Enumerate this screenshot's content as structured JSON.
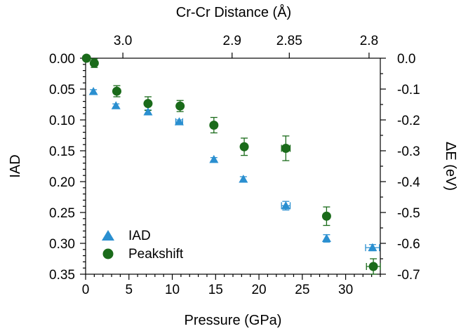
{
  "chart_data": {
    "type": "scatter",
    "xlabel": "Pressure (GPa)",
    "x_top_label": "Cr-Cr Distance (Å)",
    "ylabel": "IAD",
    "y2label": "ΔE (eV)",
    "xlim": [
      0,
      34
    ],
    "ylim": [
      0,
      0.35
    ],
    "y_inverted": true,
    "y2lim": [
      0,
      -0.7
    ],
    "x_ticks": [
      "0",
      "5",
      "10",
      "15",
      "20",
      "25",
      "30"
    ],
    "y_ticks": [
      "0.00",
      "0.05",
      "0.10",
      "0.15",
      "0.20",
      "0.25",
      "0.30",
      "0.35"
    ],
    "y2_ticks": [
      "0.0",
      "-0.1",
      "-0.2",
      "-0.3",
      "-0.4",
      "-0.5",
      "-0.6",
      "-0.7"
    ],
    "x_top_ticks": [
      {
        "label": "3.0",
        "pressure": 4.3
      },
      {
        "label": "2.9",
        "pressure": 16.9
      },
      {
        "label": "2.85",
        "pressure": 23.5
      },
      {
        "label": "2.8",
        "pressure": 32.7
      }
    ],
    "legend_position": "bottom-left",
    "series": [
      {
        "name": "IAD",
        "marker": "triangle",
        "color": "#2a8fd0",
        "axis": "left",
        "points": [
          {
            "x": 0.9,
            "y": 0.054,
            "yerr": 0.003,
            "xerr": 0
          },
          {
            "x": 3.5,
            "y": 0.077,
            "yerr": 0.003,
            "xerr": 0
          },
          {
            "x": 7.2,
            "y": 0.087,
            "yerr": 0.003,
            "xerr": 0
          },
          {
            "x": 10.8,
            "y": 0.103,
            "yerr": 0.003,
            "xerr": 0.4
          },
          {
            "x": 14.8,
            "y": 0.164,
            "yerr": 0.003,
            "xerr": 0
          },
          {
            "x": 18.2,
            "y": 0.196,
            "yerr": 0.004,
            "xerr": 0
          },
          {
            "x": 23.1,
            "y": 0.239,
            "yerr": 0.007,
            "xerr": 0.5
          },
          {
            "x": 27.8,
            "y": 0.292,
            "yerr": 0.006,
            "xerr": 0
          },
          {
            "x": 33.1,
            "y": 0.307,
            "yerr": 0.005,
            "xerr": 0.8
          }
        ]
      },
      {
        "name": "Peakshift",
        "marker": "circle",
        "color": "#1a6b1a",
        "axis": "right",
        "points": [
          {
            "x": 0.1,
            "y": 0.0,
            "yerr": 0.0,
            "xerr": 0
          },
          {
            "x": 1.0,
            "y": -0.016,
            "yerr": 0.014,
            "xerr": 0
          },
          {
            "x": 3.6,
            "y": -0.107,
            "yerr": 0.018,
            "xerr": 0
          },
          {
            "x": 7.2,
            "y": -0.147,
            "yerr": 0.022,
            "xerr": 0
          },
          {
            "x": 10.9,
            "y": -0.155,
            "yerr": 0.018,
            "xerr": 0
          },
          {
            "x": 14.8,
            "y": -0.217,
            "yerr": 0.025,
            "xerr": 0
          },
          {
            "x": 18.3,
            "y": -0.287,
            "yerr": 0.028,
            "xerr": 0
          },
          {
            "x": 23.1,
            "y": -0.292,
            "yerr": 0.04,
            "xerr": 0.5
          },
          {
            "x": 27.8,
            "y": -0.512,
            "yerr": 0.03,
            "xerr": 0
          },
          {
            "x": 33.2,
            "y": -0.675,
            "yerr": 0.025,
            "xerr": 0.8
          }
        ]
      }
    ]
  }
}
